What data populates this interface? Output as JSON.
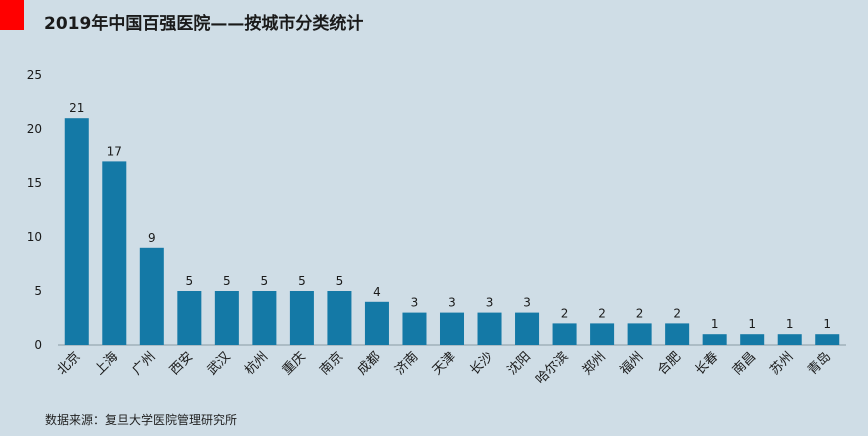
{
  "title": "2019年中国百强医院——按城市分类统计",
  "source": "数据来源：复旦大学医院管理研究所",
  "colors": {
    "bar": "#1479a6",
    "background": "#cfdde6",
    "accent": "#ff0000",
    "axis": "#8a9aa4",
    "text": "#1a1a1a"
  },
  "chart_data": {
    "type": "bar",
    "categories": [
      "北京",
      "上海",
      "广州",
      "西安",
      "武汉",
      "杭州",
      "重庆",
      "南京",
      "成都",
      "济南",
      "天津",
      "长沙",
      "沈阳",
      "哈尔滨",
      "郑州",
      "福州",
      "合肥",
      "长春",
      "南昌",
      "苏州",
      "青岛"
    ],
    "values": [
      21,
      17,
      9,
      5,
      5,
      5,
      5,
      5,
      4,
      3,
      3,
      3,
      3,
      2,
      2,
      2,
      2,
      1,
      1,
      1,
      1
    ],
    "ylim": [
      0,
      25
    ],
    "yticks": [
      0,
      5,
      10,
      15,
      20,
      25
    ],
    "grid": false,
    "legend": "none",
    "data_labels": true
  }
}
